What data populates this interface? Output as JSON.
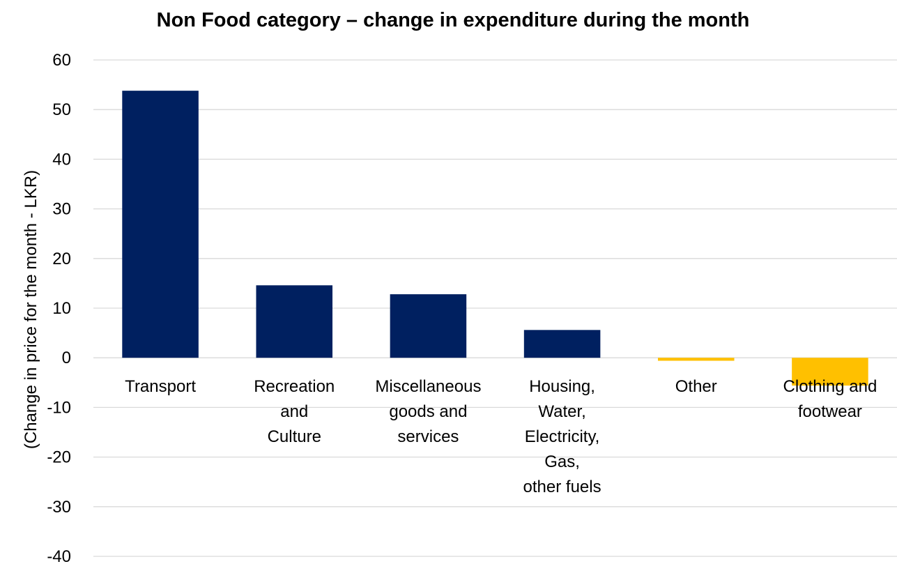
{
  "chart_data": {
    "type": "bar",
    "title": "Non Food category – change in expenditure during the month",
    "xlabel": "",
    "ylabel": "(Change in price for the month - LKR)",
    "ylim": [
      -40,
      60
    ],
    "yticks": [
      60,
      50,
      40,
      30,
      20,
      10,
      0,
      -10,
      -20,
      -30,
      -40
    ],
    "grid": true,
    "legend": "none",
    "categories": [
      [
        "Transport"
      ],
      [
        "Recreation",
        "and",
        "Culture"
      ],
      [
        "Miscellaneous",
        "goods and",
        "services"
      ],
      [
        "Housing,",
        "Water,",
        "Electricity,",
        "Gas,",
        "other fuels"
      ],
      [
        "Other"
      ],
      [
        "Clothing and",
        "footwear"
      ]
    ],
    "values": [
      53.8,
      14.6,
      12.8,
      5.6,
      -0.6,
      -5.6
    ],
    "colors": [
      "#002060",
      "#002060",
      "#002060",
      "#002060",
      "#FFC000",
      "#FFC000"
    ]
  }
}
